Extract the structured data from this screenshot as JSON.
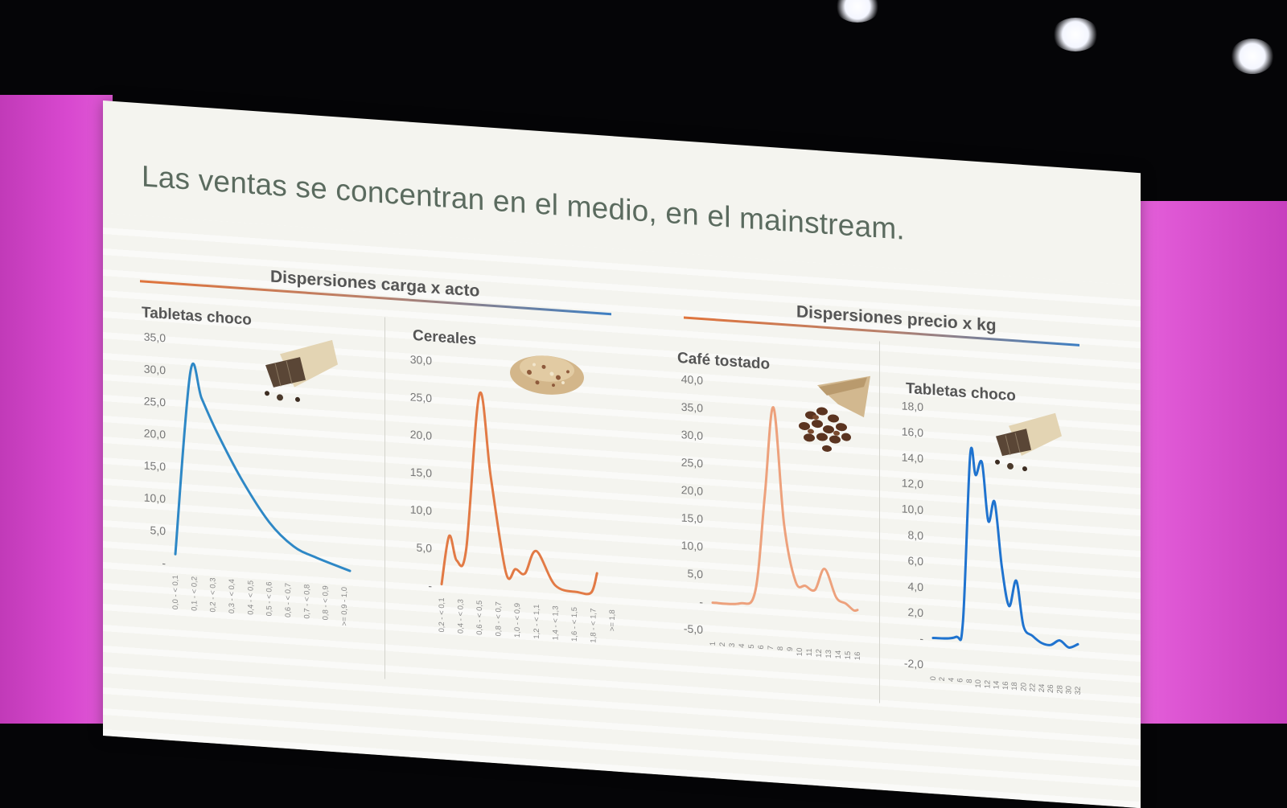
{
  "slide": {
    "title": "Las ventas se concentran en el medio, en el mainstream.",
    "sections": [
      {
        "title": "Dispersiones carga x acto"
      },
      {
        "title": "Dispersiones precio x kg"
      }
    ]
  },
  "chart_data": [
    {
      "type": "line",
      "title": "Tabletas choco",
      "icon": "chocolate-bar-icon",
      "color": "#2e88c6",
      "ylim": [
        0,
        35
      ],
      "yticks": [
        "",
        "5,0",
        "10,0",
        "15,0",
        "20,0",
        "25,0",
        "30,0",
        "35,0"
      ],
      "categories": [
        "0,0 - < 0,1",
        "0,1 - < 0,2",
        "0,2 - < 0,3",
        "0,3 - < 0,4",
        "0,4 - < 0,5",
        "0,5 - < 0,6",
        "0,6 - < 0,7",
        "0,7 - < 0,8",
        "0,8 - < 0,9",
        ">= 0,9 - 1,0"
      ],
      "x": [
        0,
        0.8,
        1.4,
        2.2,
        3.5,
        5.0,
        6.3,
        7.5,
        9.3
      ],
      "y": [
        1.5,
        30,
        26,
        21,
        14,
        7.5,
        4,
        2.5,
        0.8
      ]
    },
    {
      "type": "line",
      "title": "Cereales",
      "icon": "cereal-icon",
      "color": "#e27a45",
      "ylim": [
        0,
        30
      ],
      "yticks": [
        "",
        "5,0",
        "10,0",
        "15,0",
        "20,0",
        "25,0",
        "30,0"
      ],
      "categories": [
        "0,2 - < 0,1",
        "0,4 - < 0,3",
        "0,6 - < 0,5",
        "0,8 - < 0,7",
        "1,0 - < 0,9",
        "1,2 - < 1,1",
        "1,4 - < 1,3",
        "1,6 - < 1,5",
        "1,8 - < 1,7",
        ">= 1,8"
      ],
      "x": [
        0,
        0.4,
        0.8,
        1.3,
        2.0,
        2.6,
        3.4,
        3.9,
        4.4,
        5.0,
        6.0,
        7.2,
        7.9,
        8.2
      ],
      "y": [
        0.3,
        6.8,
        3.6,
        5.2,
        26,
        15,
        2.4,
        3.0,
        2.5,
        5.6,
        1.2,
        0.5,
        0.6,
        3.2
      ]
    },
    {
      "type": "line",
      "title": "Café tostado",
      "icon": "coffee-beans-icon",
      "color": "#eda17c",
      "ylim": [
        -5,
        40
      ],
      "yticks": [
        "-5,0",
        "",
        "5,0",
        "10,0",
        "15,0",
        "20,0",
        "25,0",
        "30,0",
        "35,0",
        "40,0"
      ],
      "categories": [
        "1",
        "2",
        "3",
        "4",
        "5",
        "6",
        "7",
        "8",
        "9",
        "10",
        "11",
        "12",
        "13",
        "14",
        "15",
        "16"
      ],
      "x": [
        0,
        2.8,
        4.4,
        5.4,
        6.3,
        7.4,
        8.6,
        9.6,
        10.6,
        11.6,
        12.8,
        13.8,
        14.6,
        15.0
      ],
      "y": [
        0,
        0.2,
        2.5,
        20,
        36,
        15,
        4.8,
        4.2,
        3.6,
        7.5,
        2.5,
        1.5,
        0.4,
        0.5
      ]
    },
    {
      "type": "line",
      "title": "Tabletas choco",
      "icon": "chocolate-bar-icon",
      "color": "#1f73cf",
      "ylim": [
        -2,
        18
      ],
      "yticks": [
        "-2,0",
        "",
        "2,0",
        "4,0",
        "6,0",
        "8,0",
        "10,0",
        "12,0",
        "14,0",
        "16,0",
        "18,0"
      ],
      "categories": [
        "0",
        "2",
        "4",
        "6",
        "8",
        "10",
        "12",
        "14",
        "16",
        "18",
        "20",
        "22",
        "24",
        "26",
        "28",
        "30",
        "32"
      ],
      "x": [
        0,
        2.5,
        3.3,
        4.1,
        4.7,
        5.4,
        6.1,
        6.8,
        7.6,
        8.4,
        9.2,
        10.0,
        11.0,
        12.0,
        13.0,
        14.0,
        15.0,
        16.0
      ],
      "y": [
        0.1,
        0.3,
        1.5,
        14.5,
        13,
        14,
        9.5,
        11,
        6,
        3,
        5,
        1.5,
        0.8,
        0.3,
        0.2,
        0.6,
        0.1,
        0.4
      ]
    }
  ]
}
